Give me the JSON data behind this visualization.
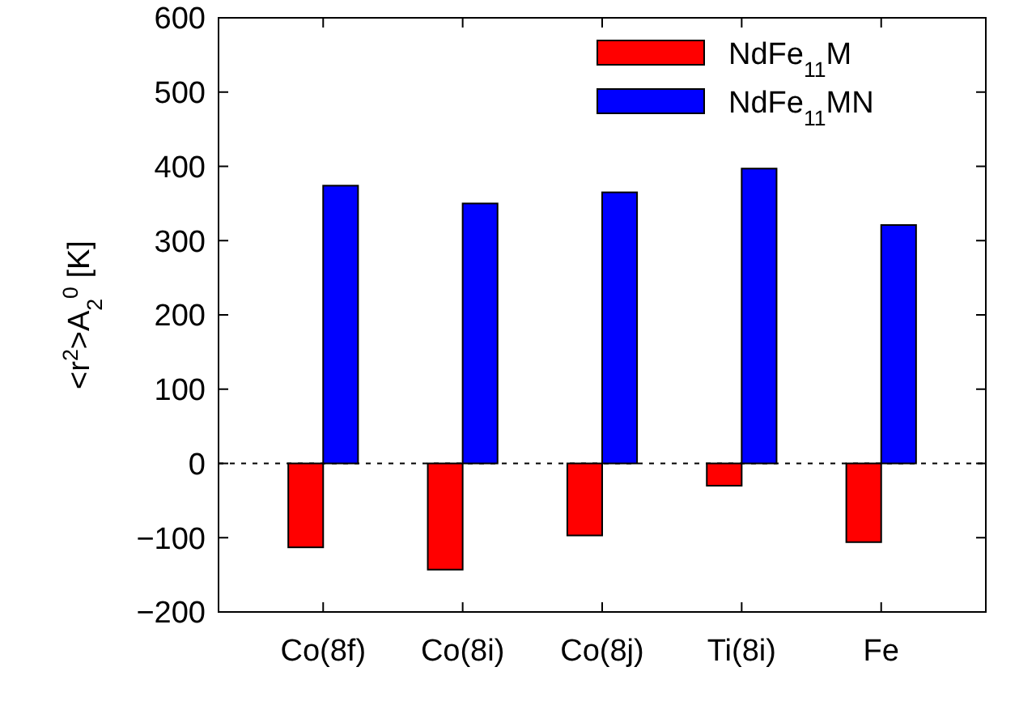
{
  "chart_data": {
    "type": "bar",
    "ylabel": "<r$^{2}$>A$_{2}$$^{0}$ [K]",
    "categories": [
      "Co(8f)",
      "Co(8i)",
      "Co(8j)",
      "Ti(8i)",
      "Fe"
    ],
    "series": [
      {
        "name": "NdFe$_{11}$M",
        "color": "#ff0000",
        "values": [
          -113,
          -143,
          -97,
          -30,
          -106
        ]
      },
      {
        "name": "NdFe$_{11}$MN",
        "color": "#0000ff",
        "values": [
          374,
          350,
          365,
          397,
          321
        ]
      }
    ],
    "ylim": [
      -200,
      600
    ],
    "yticks": [
      -200,
      -100,
      0,
      100,
      200,
      300,
      400,
      500,
      600
    ],
    "ref_lines": [
      {
        "axis": "y",
        "value": 0,
        "line_style": "dashed",
        "color": "#000000"
      }
    ],
    "grid": false,
    "legend": "top right"
  }
}
